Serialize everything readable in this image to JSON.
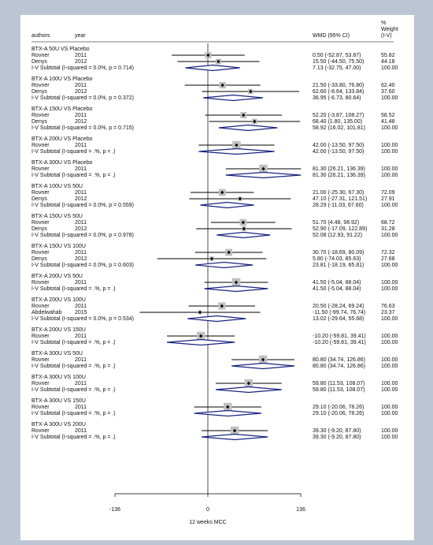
{
  "header": {
    "authors": "authors",
    "year": "year",
    "wmd": "WMD (95% CI)",
    "weight_lines": [
      "%",
      "Weight",
      "(I-V)"
    ]
  },
  "axis": {
    "ticks": [
      "-136",
      "0",
      "136"
    ],
    "xlabel": "12 weeks MCC"
  },
  "chart_data": {
    "type": "forest",
    "xlim": [
      -136,
      136
    ],
    "ref_line": 0,
    "groups": [
      {
        "title": "BTX-A 50U VS Placebo",
        "studies": [
          {
            "author": "Rovner",
            "year": "2011",
            "est": 0.5,
            "lo": -52.87,
            "hi": 53.87,
            "ci_text": "0.50 (-52.87, 53.87)",
            "weight": 55.82,
            "weight_text": "55.82"
          },
          {
            "author": "Denys",
            "year": "2012",
            "est": 15.5,
            "lo": -44.5,
            "hi": 75.5,
            "ci_text": "15.50 (-44.50, 75.50)",
            "weight": 44.18,
            "weight_text": "44.18"
          }
        ],
        "subtotal": {
          "label": "I-V Subtotal  (I-squared = 0.0%, p = 0.714)",
          "est": 7.13,
          "lo": -32.75,
          "hi": 47.0,
          "ci_text": "7.13 (-32.75, 47.00)",
          "weight_text": "100.00"
        }
      },
      {
        "title": "BTX-A 100U VS Placebo",
        "studies": [
          {
            "author": "Rovner",
            "year": "2011",
            "est": 21.5,
            "lo": -33.8,
            "hi": 76.8,
            "ci_text": "21.50 (-33.80, 76.80)",
            "weight": 62.4,
            "weight_text": "62.40"
          },
          {
            "author": "Denys",
            "year": "2012",
            "est": 62.6,
            "lo": -8.64,
            "hi": 133.84,
            "ci_text": "62.60 (-8.64, 133.84)",
            "weight": 37.6,
            "weight_text": "37.60"
          }
        ],
        "subtotal": {
          "label": "I-V Subtotal  (I-squared = 0.0%, p = 0.372)",
          "est": 36.95,
          "lo": -6.73,
          "hi": 80.64,
          "ci_text": "36.95 (-6.73, 80.64)",
          "weight_text": "100.00"
        }
      },
      {
        "title": "BTX-A 150U VS Placebo",
        "studies": [
          {
            "author": "Rovner",
            "year": "2011",
            "est": 52.2,
            "lo": -3.87,
            "hi": 108.27,
            "ci_text": "52.20 (-3.87, 108.27)",
            "weight": 58.52,
            "weight_text": "58.52"
          },
          {
            "author": "Denys",
            "year": "2012",
            "est": 68.4,
            "lo": 1.8,
            "hi": 135.0,
            "ci_text": "68.40 (1.80, 135.00)",
            "weight": 41.48,
            "weight_text": "41.48"
          }
        ],
        "subtotal": {
          "label": "I-V Subtotal  (I-squared = 0.0%, p = 0.715)",
          "est": 58.92,
          "lo": 16.02,
          "hi": 101.81,
          "ci_text": "58.92 (16.02, 101.81)",
          "weight_text": "100.00"
        }
      },
      {
        "title": "BTX-A 200U VS Placebo",
        "studies": [
          {
            "author": "Rovner",
            "year": "2011",
            "est": 42.0,
            "lo": -13.5,
            "hi": 97.5,
            "ci_text": "42.00 (-13.50, 97.50)",
            "weight": 100.0,
            "weight_text": "100.00"
          }
        ],
        "subtotal": {
          "label": "I-V Subtotal  (I-squared = .%, p = .)",
          "est": 42.0,
          "lo": -13.5,
          "hi": 97.5,
          "ci_text": "42.00 (-13.50, 97.50)",
          "weight_text": "100.00"
        }
      },
      {
        "title": "BTX-A 300U VS Placebo",
        "studies": [
          {
            "author": "Rovner",
            "year": "2011",
            "est": 81.3,
            "lo": 26.21,
            "hi": 136.39,
            "ci_text": "81.30 (26.21, 136.39)",
            "weight": 100.0,
            "weight_text": "100.00"
          }
        ],
        "subtotal": {
          "label": "I-V Subtotal  (I-squared = .%, p = .)",
          "est": 81.3,
          "lo": 26.21,
          "hi": 136.39,
          "ci_text": "81.30 (26.21, 136.39)",
          "weight_text": "100.00"
        }
      },
      {
        "title": "BTX-A 100U VS 50U",
        "studies": [
          {
            "author": "Rovner",
            "year": "2011",
            "est": 21.0,
            "lo": -25.3,
            "hi": 67.3,
            "ci_text": "21.00 (-25.30, 67.30)",
            "weight": 72.09,
            "weight_text": "72.09"
          },
          {
            "author": "Denys",
            "year": "2012",
            "est": 47.1,
            "lo": -27.31,
            "hi": 121.51,
            "ci_text": "47.10 (-27.31, 121.51)",
            "weight": 27.91,
            "weight_text": "27.91"
          }
        ],
        "subtotal": {
          "label": "I-V Subtotal  (I-squared = 0.0%, p = 0.559)",
          "est": 28.29,
          "lo": -11.03,
          "hi": 67.6,
          "ci_text": "28.29 (-11.03, 67.60)",
          "weight_text": "100.00"
        }
      },
      {
        "title": "BTX-A 150U VS 50U",
        "studies": [
          {
            "author": "Rovner",
            "year": "2011",
            "est": 51.7,
            "lo": 4.48,
            "hi": 98.92,
            "ci_text": "51.70 (4.48, 98.92)",
            "weight": 68.72,
            "weight_text": "68.72"
          },
          {
            "author": "Denys",
            "year": "2012",
            "est": 52.9,
            "lo": -17.09,
            "hi": 122.89,
            "ci_text": "52.90 (-17.09, 122.89)",
            "weight": 31.28,
            "weight_text": "31.28"
          }
        ],
        "subtotal": {
          "label": "I-V Subtotal  (I-squared = 0.0%, p = 0.978)",
          "est": 52.08,
          "lo": 12.93,
          "hi": 91.22,
          "ci_text": "52.08 (12.93, 91.22)",
          "weight_text": "100.00"
        }
      },
      {
        "title": "BTX-A 150U VS 100U",
        "studies": [
          {
            "author": "Rovner",
            "year": "2011",
            "est": 30.7,
            "lo": -18.69,
            "hi": 80.09,
            "ci_text": "30.70 (-18.69, 80.09)",
            "weight": 72.32,
            "weight_text": "72.32"
          },
          {
            "author": "Denys",
            "year": "2012",
            "est": 5.8,
            "lo": -74.03,
            "hi": 85.63,
            "ci_text": "5.80 (-74.03, 85.63)",
            "weight": 27.68,
            "weight_text": "27.68"
          }
        ],
        "subtotal": {
          "label": "I-V Subtotal  (I-squared = 0.0%, p = 0.603)",
          "est": 23.81,
          "lo": -18.19,
          "hi": 65.81,
          "ci_text": "23.81 (-18.19, 65.81)",
          "weight_text": "100.00"
        }
      },
      {
        "title": "BTX-A 200U VS 50U",
        "studies": [
          {
            "author": "Rovner",
            "year": "2011",
            "est": 41.5,
            "lo": -5.04,
            "hi": 88.04,
            "ci_text": "41.50 (-5.04, 88.04)",
            "weight": 100.0,
            "weight_text": "100.00"
          }
        ],
        "subtotal": {
          "label": "I-V Subtotal  (I-squared = .%, p = .)",
          "est": 41.5,
          "lo": -5.04,
          "hi": 88.04,
          "ci_text": "41.50 (-5.04, 88.04)",
          "weight_text": "100.00"
        }
      },
      {
        "title": "BTX-A 200U VS 100U",
        "studies": [
          {
            "author": "Rovner",
            "year": "2011",
            "est": 20.5,
            "lo": -28.24,
            "hi": 69.24,
            "ci_text": "20.50 (-28.24, 69.24)",
            "weight": 76.63,
            "weight_text": "76.63"
          },
          {
            "author": "Abdelwahab",
            "year": "2015",
            "est": -11.5,
            "lo": -99.74,
            "hi": 76.74,
            "ci_text": "-11.50 (-99.74, 76.74)",
            "weight": 23.37,
            "weight_text": "23.37"
          }
        ],
        "subtotal": {
          "label": "I-V Subtotal  (I-squared = 0.0%, p = 0.534)",
          "est": 13.02,
          "lo": -29.64,
          "hi": 55.68,
          "ci_text": "13.02 (-29.64, 55.68)",
          "weight_text": "100.00"
        }
      },
      {
        "title": "BTX-A 200U VS 150U",
        "studies": [
          {
            "author": "Rovner",
            "year": "2011",
            "est": -10.2,
            "lo": -59.81,
            "hi": 39.41,
            "ci_text": "-10.20 (-59.81, 39.41)",
            "weight": 100.0,
            "weight_text": "100.00"
          }
        ],
        "subtotal": {
          "label": "I-V Subtotal  (I-squared = .%, p = .)",
          "est": -10.2,
          "lo": -59.81,
          "hi": 39.41,
          "ci_text": "-10.20 (-59.81, 39.41)",
          "weight_text": "100.00"
        }
      },
      {
        "title": "BTX-A 300U VS 50U",
        "studies": [
          {
            "author": "Rovner",
            "year": "2011",
            "est": 80.8,
            "lo": 34.74,
            "hi": 126.86,
            "ci_text": "80.80 (34.74, 126.86)",
            "weight": 100.0,
            "weight_text": "100.00"
          }
        ],
        "subtotal": {
          "label": "I-V Subtotal  (I-squared = .%, p = .)",
          "est": 80.8,
          "lo": 34.74,
          "hi": 126.86,
          "ci_text": "80.80 (34.74, 126.86)",
          "weight_text": "100.00"
        }
      },
      {
        "title": "BTX-A 300U VS 100U",
        "studies": [
          {
            "author": "Rovner",
            "year": "2011",
            "est": 59.8,
            "lo": 11.53,
            "hi": 108.07,
            "ci_text": "59.80 (11.53, 108.07)",
            "weight": 100.0,
            "weight_text": "100.00"
          }
        ],
        "subtotal": {
          "label": "I-V Subtotal  (I-squared = .%, p = .)",
          "est": 59.8,
          "lo": 11.53,
          "hi": 108.07,
          "ci_text": "59.80 (11.53, 108.07)",
          "weight_text": "100.00"
        }
      },
      {
        "title": "BTX-A 300U VS 150U",
        "studies": [
          {
            "author": "Rovner",
            "year": "2011",
            "est": 29.1,
            "lo": -20.06,
            "hi": 78.26,
            "ci_text": "29.10 (-20.06, 78.26)",
            "weight": 100.0,
            "weight_text": "100.00"
          }
        ],
        "subtotal": {
          "label": "I-V Subtotal  (I-squared = .%, p = .)",
          "est": 29.1,
          "lo": -20.06,
          "hi": 78.26,
          "ci_text": "29.10 (-20.06, 78.26)",
          "weight_text": "100.00"
        }
      },
      {
        "title": "BTX-A 300U VS 200U",
        "studies": [
          {
            "author": "Rovner",
            "year": "2011",
            "est": 39.3,
            "lo": -9.2,
            "hi": 87.8,
            "ci_text": "39.30 (-9.20, 87.80)",
            "weight": 100.0,
            "weight_text": "100.00"
          }
        ],
        "subtotal": {
          "label": "I-V Subtotal  (I-squared = .%, p = .)",
          "est": 39.3,
          "lo": -9.2,
          "hi": 87.8,
          "ci_text": "39.30 (-9.20, 87.80)",
          "weight_text": "100.00"
        }
      }
    ]
  }
}
